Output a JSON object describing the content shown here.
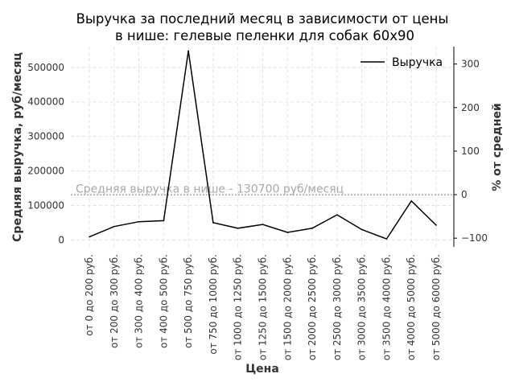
{
  "chart_data": {
    "type": "line",
    "title_line1": "Выручка за последний месяц в зависимости от цены",
    "title_line2": "в нише: гелевые пеленки для собак 60х90",
    "xlabel": "Цена",
    "ylabel": "Средняя выручка, руб/месяц",
    "y2label": "% от средней",
    "ylim": [
      -20000,
      560000
    ],
    "y2lim": [
      -120,
      340
    ],
    "yticks": [
      0,
      100000,
      200000,
      300000,
      400000,
      500000
    ],
    "ytick_labels": [
      "0",
      "100000",
      "200000",
      "300000",
      "400000",
      "500000"
    ],
    "y2ticks": [
      -100,
      0,
      100,
      200,
      300
    ],
    "y2tick_labels": [
      "−100",
      "0",
      "100",
      "200",
      "300"
    ],
    "categories": [
      "от 0 до 200 руб.",
      "от 200 до 300 руб.",
      "от 300 до 400 руб.",
      "от 400 до 500 руб.",
      "от 500 до 750 руб.",
      "от 750 до 1000 руб.",
      "от 1000 до 1250 руб.",
      "от 1250 до 1500 руб.",
      "от 1500 до 2000 руб.",
      "от 2000 до 2500 руб.",
      "от 2500 до 3000 руб.",
      "от 3000 до 3500 руб.",
      "от 3500 до 4000 руб.",
      "от 4000 до 5000 руб.",
      "от 5000 до 6000 руб."
    ],
    "series": [
      {
        "name": "Выручка",
        "color": "#000000",
        "values": [
          9000,
          39000,
          53000,
          56000,
          548000,
          50000,
          34000,
          45000,
          22000,
          34000,
          73000,
          30000,
          3000,
          113000,
          43000
        ]
      }
    ],
    "average": {
      "value": 130700,
      "label": "Средняя выручка в нише - 130700 руб/месяц",
      "color": "#a8a8a8"
    },
    "legend_position": "top-right",
    "grid": true
  }
}
